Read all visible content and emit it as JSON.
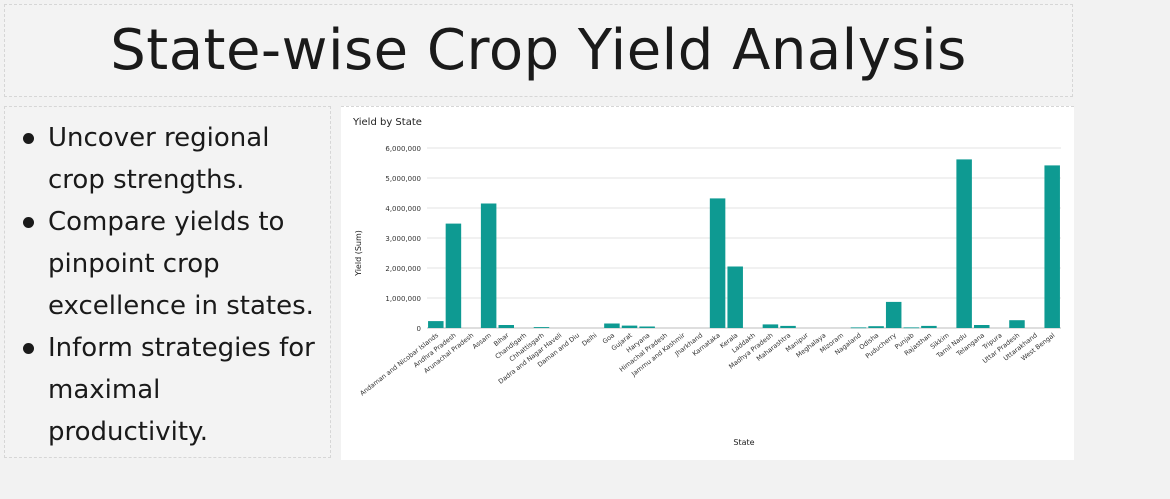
{
  "header": {
    "title": "State-wise Crop Yield Analysis"
  },
  "bullets": [
    "Uncover regional crop strengths.",
    "Compare yields to pinpoint crop excellence in states.",
    "Inform strategies for maximal productivity."
  ],
  "colors": {
    "bar": "#0e9a92",
    "grid": "#e3e3e3",
    "text": "#333333"
  },
  "chart_data": {
    "type": "bar",
    "title": "Yield by State",
    "xlabel": "State",
    "ylabel": "Yield (Sum)",
    "ylim": [
      0,
      6000000
    ],
    "yticks": [
      0,
      1000000,
      2000000,
      3000000,
      4000000,
      5000000,
      6000000
    ],
    "ytick_labels": [
      "0",
      "1,000,000",
      "2,000,000",
      "3,000,000",
      "4,000,000",
      "5,000,000",
      "6,000,000"
    ],
    "grid": true,
    "categories": [
      "Andaman and Nicobar Islands",
      "Andhra Pradesh",
      "Arunachal Pradesh",
      "Assam",
      "Bihar",
      "Chandigarh",
      "Chhattisgarh",
      "Dadra and Nagar Haveli",
      "Daman and Diu",
      "Delhi",
      "Goa",
      "Gujarat",
      "Haryana",
      "Himachal Pradesh",
      "Jammu and Kashmir",
      "Jharkhand",
      "Karnataka",
      "Kerala",
      "Laddakh",
      "Madhya Pradesh",
      "Maharashtra",
      "Manipur",
      "Meghalaya",
      "Mizoram",
      "Nagaland",
      "Odisha",
      "Puducherry",
      "Punjab",
      "Rajasthan",
      "Sikkim",
      "Tamil Nadu",
      "Telangana",
      "Tripura",
      "Uttar Pradesh",
      "Uttarakhand",
      "West Bengal"
    ],
    "values": [
      230000,
      3480000,
      0,
      4150000,
      100000,
      0,
      30000,
      0,
      0,
      0,
      150000,
      80000,
      50000,
      0,
      0,
      0,
      4320000,
      2050000,
      0,
      120000,
      70000,
      0,
      0,
      0,
      20000,
      60000,
      870000,
      20000,
      70000,
      0,
      5620000,
      100000,
      0,
      260000,
      0,
      5420000
    ]
  }
}
